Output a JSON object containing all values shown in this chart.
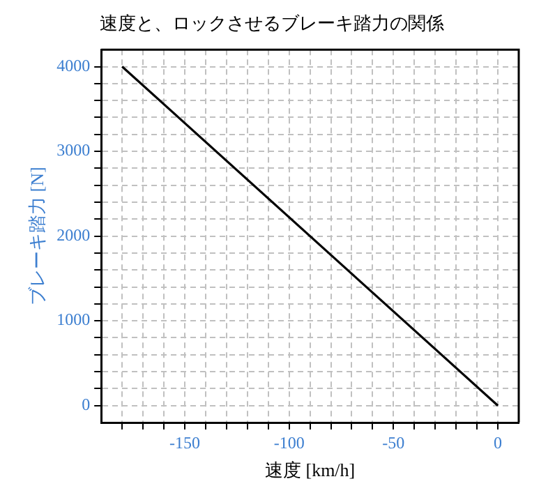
{
  "chart_data": {
    "type": "line",
    "title": "速度と、ロックさせるブレーキ踏力の関係",
    "xlabel": "速度 [km/h]",
    "ylabel": "ブレーキ踏力 [N]",
    "x": [
      -180,
      0
    ],
    "series": [
      {
        "color": "#000000",
        "values": [
          4000,
          0
        ]
      }
    ],
    "xlim": [
      -190,
      10
    ],
    "xticks": [
      {
        "value": -180,
        "label": null
      },
      {
        "value": -170,
        "label": null
      },
      {
        "value": -160,
        "label": null
      },
      -150,
      {
        "value": -140,
        "label": null
      },
      {
        "value": -130,
        "label": null
      },
      {
        "value": -120,
        "label": null
      },
      {
        "value": -110,
        "label": null
      },
      -100,
      {
        "value": -90,
        "label": null
      },
      {
        "value": -80,
        "label": null
      },
      {
        "value": -70,
        "label": null
      },
      {
        "value": -60,
        "label": null
      },
      -50,
      {
        "value": -40,
        "label": null
      },
      {
        "value": -30,
        "label": null
      },
      {
        "value": -20,
        "label": null
      },
      {
        "value": -10,
        "label": null
      },
      0
    ],
    "ylim": [
      -200,
      4200
    ],
    "yticks": [
      0,
      {
        "value": 200,
        "label": null
      },
      {
        "value": 400,
        "label": null
      },
      {
        "value": 600,
        "label": null
      },
      {
        "value": 800,
        "label": null
      },
      1000,
      {
        "value": 1200,
        "label": null
      },
      {
        "value": 1400,
        "label": null
      },
      {
        "value": 1600,
        "label": null
      },
      {
        "value": 1800,
        "label": null
      },
      2000,
      {
        "value": 2200,
        "label": null
      },
      {
        "value": 2400,
        "label": null
      },
      {
        "value": 2600,
        "label": null
      },
      {
        "value": 2800,
        "label": null
      },
      3000,
      {
        "value": 3200,
        "label": null
      },
      {
        "value": 3400,
        "label": null
      },
      {
        "value": 3600,
        "label": null
      },
      {
        "value": 3800,
        "label": null
      },
      4000
    ],
    "grid": true,
    "marker": "none",
    "line_style": "solid",
    "legend": false
  }
}
